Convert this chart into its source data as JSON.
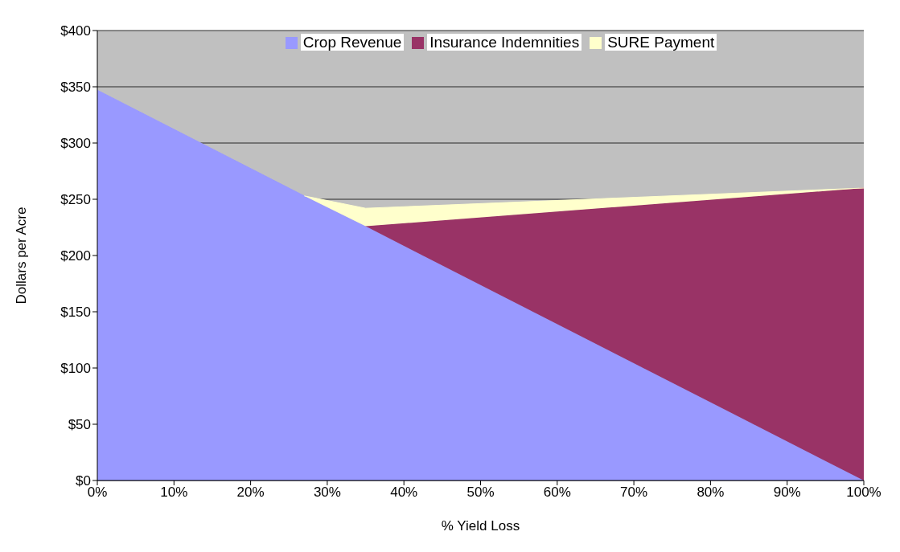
{
  "chart_data": {
    "type": "area",
    "stacked": true,
    "xlabel": "% Yield Loss",
    "ylabel": "Dollars per Acre",
    "x": [
      0,
      27,
      35,
      100
    ],
    "series": [
      {
        "name": "Crop Revenue",
        "color": "#9999ff",
        "values": [
          347,
          253,
          226,
          0
        ]
      },
      {
        "name": "Insurance Indemnities",
        "color": "#993366",
        "values": [
          null,
          null,
          0,
          260
        ]
      },
      {
        "name": "SURE Payment",
        "color": "#ffffcc",
        "values": [
          null,
          0,
          16,
          0
        ]
      }
    ],
    "xlim": [
      0,
      100
    ],
    "xticks": [
      {
        "value": 0,
        "label": "0%"
      },
      {
        "value": 10,
        "label": "10%"
      },
      {
        "value": 20,
        "label": "20%"
      },
      {
        "value": 30,
        "label": "30%"
      },
      {
        "value": 40,
        "label": "40%"
      },
      {
        "value": 50,
        "label": "50%"
      },
      {
        "value": 60,
        "label": "60%"
      },
      {
        "value": 70,
        "label": "70%"
      },
      {
        "value": 80,
        "label": "80%"
      },
      {
        "value": 90,
        "label": "90%"
      },
      {
        "value": 100,
        "label": "100%"
      }
    ],
    "ylim": [
      0,
      400
    ],
    "yticks": [
      {
        "value": 0,
        "label": "$0"
      },
      {
        "value": 50,
        "label": "$50"
      },
      {
        "value": 100,
        "label": "$100"
      },
      {
        "value": 150,
        "label": "$150"
      },
      {
        "value": 200,
        "label": "$200"
      },
      {
        "value": 250,
        "label": "$250"
      },
      {
        "value": 300,
        "label": "$300"
      },
      {
        "value": 350,
        "label": "$350"
      },
      {
        "value": 400,
        "label": "$400"
      }
    ],
    "grid": "y",
    "legend": "top"
  }
}
